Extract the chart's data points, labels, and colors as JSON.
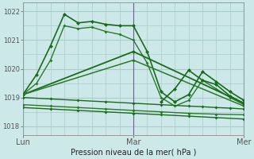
{
  "title": "Pression niveau de la mer( hPa )",
  "ylabel_ticks": [
    1018,
    1019,
    1020,
    1021,
    1022
  ],
  "ylim": [
    1017.7,
    1022.3
  ],
  "xlim": [
    0,
    48
  ],
  "x_ticks": [
    0,
    24,
    48
  ],
  "x_tick_labels": [
    "Lun",
    "Mar",
    "Mer"
  ],
  "background_color": "#cce8e8",
  "grid_color": "#aacccc",
  "series": [
    {
      "x": [
        0,
        3,
        6,
        9,
        12,
        15,
        18,
        21,
        24,
        27,
        30,
        33,
        36,
        39,
        42,
        45,
        48
      ],
      "y": [
        1019.1,
        1019.8,
        1020.8,
        1021.9,
        1021.6,
        1021.65,
        1021.55,
        1021.5,
        1021.5,
        1020.6,
        1019.2,
        1018.85,
        1019.1,
        1019.9,
        1019.55,
        1019.2,
        1018.9
      ],
      "color": "#1a6b1a",
      "lw": 1.2,
      "marker": "D",
      "ms": 2.5
    },
    {
      "x": [
        0,
        3,
        6,
        9,
        12,
        15,
        18,
        21,
        24,
        27,
        30,
        33,
        36,
        39,
        42,
        45,
        48
      ],
      "y": [
        1019.1,
        1019.5,
        1020.3,
        1021.5,
        1021.4,
        1021.45,
        1021.3,
        1021.2,
        1021.0,
        1020.2,
        1019.0,
        1018.7,
        1018.9,
        1019.6,
        1019.3,
        1019.0,
        1018.75
      ],
      "color": "#2a7a2a",
      "lw": 1.0,
      "marker": "D",
      "ms": 2.0
    },
    {
      "x": [
        0,
        24,
        48
      ],
      "y": [
        1019.1,
        1020.6,
        1018.8
      ],
      "color": "#1a6b1a",
      "lw": 1.3,
      "marker": "D",
      "ms": 2.5
    },
    {
      "x": [
        0,
        24,
        48
      ],
      "y": [
        1019.1,
        1020.3,
        1018.7
      ],
      "color": "#2a7a2a",
      "lw": 1.1,
      "marker": "D",
      "ms": 2.2
    },
    {
      "x": [
        0,
        6,
        12,
        18,
        24,
        30,
        36,
        39,
        42,
        45,
        48
      ],
      "y": [
        1019.0,
        1018.95,
        1018.9,
        1018.85,
        1018.8,
        1018.75,
        1018.7,
        1018.68,
        1018.65,
        1018.63,
        1018.6
      ],
      "color": "#1a6b1a",
      "lw": 1.0,
      "marker": "D",
      "ms": 2.0
    },
    {
      "x": [
        0,
        6,
        12,
        18,
        24,
        30,
        36,
        42,
        48
      ],
      "y": [
        1018.75,
        1018.7,
        1018.65,
        1018.6,
        1018.55,
        1018.5,
        1018.45,
        1018.42,
        1018.4
      ],
      "color": "#2a7a2a",
      "lw": 1.0,
      "marker": "D",
      "ms": 2.0
    },
    {
      "x": [
        0,
        6,
        12,
        18,
        24,
        30,
        36,
        42,
        48
      ],
      "y": [
        1018.65,
        1018.6,
        1018.55,
        1018.5,
        1018.45,
        1018.4,
        1018.35,
        1018.3,
        1018.25
      ],
      "color": "#1a6b1a",
      "lw": 1.0,
      "marker": "D",
      "ms": 2.0
    },
    {
      "x": [
        30,
        33,
        36,
        39,
        42,
        45,
        48
      ],
      "y": [
        1018.85,
        1019.3,
        1019.95,
        1019.6,
        1019.45,
        1019.05,
        1018.8
      ],
      "color": "#1a6b1a",
      "lw": 1.2,
      "marker": "D",
      "ms": 2.5
    }
  ],
  "vline_x": [
    0,
    24,
    48
  ],
  "vline_color": "#666688",
  "vline_lw": 0.8
}
